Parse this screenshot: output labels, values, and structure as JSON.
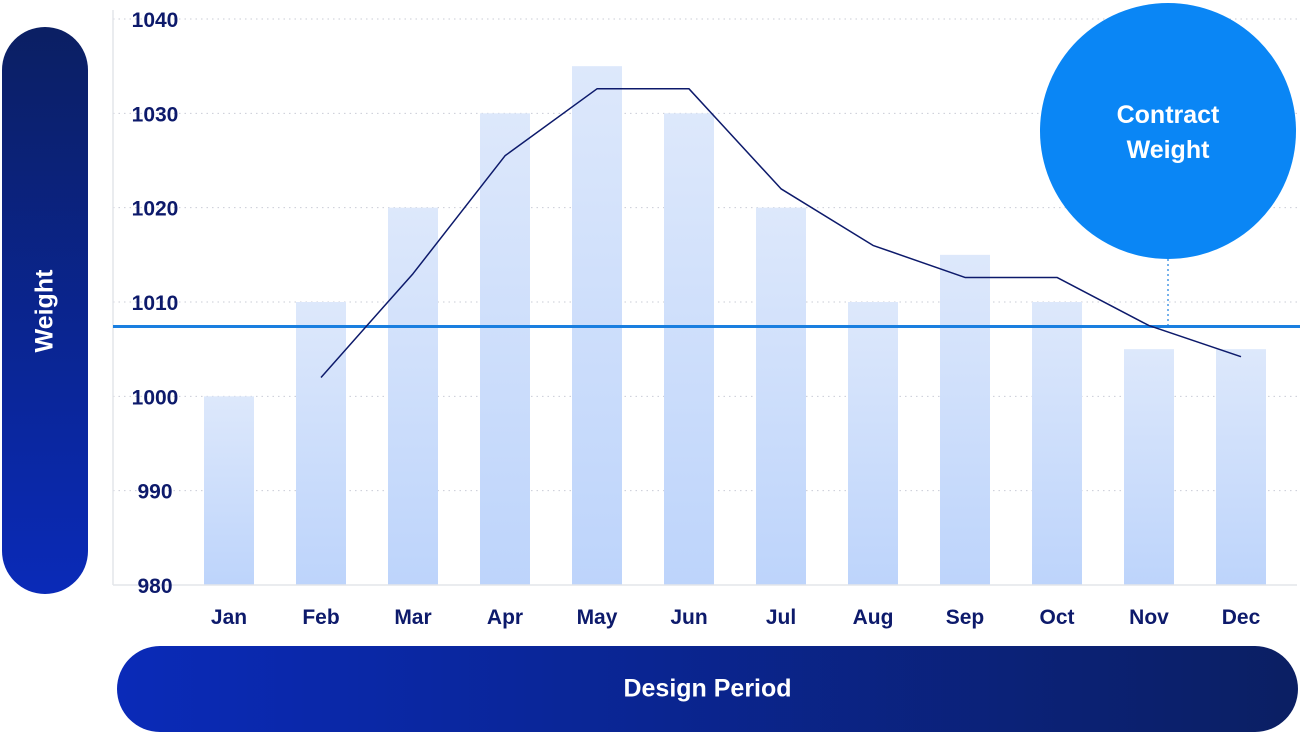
{
  "chart_data": {
    "type": "bar",
    "categories": [
      "Jan",
      "Feb",
      "Mar",
      "Apr",
      "May",
      "Jun",
      "Jul",
      "Aug",
      "Sep",
      "Oct",
      "Nov",
      "Dec"
    ],
    "values": [
      1000,
      1010,
      1020,
      1030,
      1035,
      1030,
      1020,
      1010,
      1015,
      1010,
      1005,
      1005
    ],
    "line_values": [
      null,
      1002,
      1013,
      1025.5,
      1032.6,
      1032.6,
      1022,
      1016,
      1012.6,
      1012.6,
      1007.5,
      1004.2
    ],
    "reference_line": {
      "label": "Contract Weight",
      "value": 1007.4
    },
    "xlabel": "Design Period",
    "ylabel": "Weight",
    "ylim": [
      980,
      1040
    ],
    "yticks": [
      980,
      990,
      1000,
      1010,
      1020,
      1030,
      1040
    ],
    "grid": true,
    "colors": {
      "bar_top": "#dde8fb",
      "bar_bottom": "#bdd4fb",
      "line": "#0d1a6b",
      "reference_line": "#1a7fe0",
      "bubble": "#0a86f5",
      "axis_text": "#0d1a6b"
    }
  },
  "axis_pills": {
    "y_label": "Weight",
    "x_label": "Design Period"
  },
  "bubble": {
    "line1": "Contract",
    "line2": "Weight"
  }
}
